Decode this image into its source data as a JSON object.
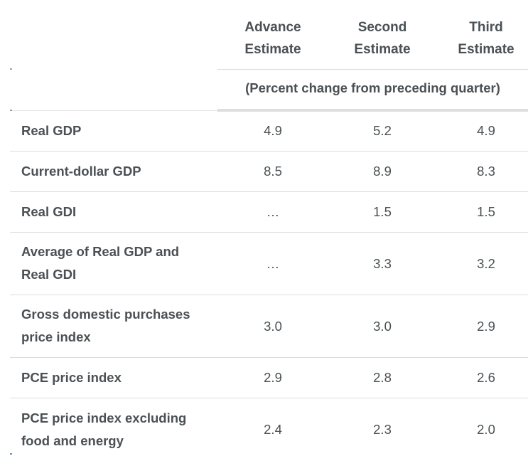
{
  "columns": [
    {
      "line1": "Advance",
      "line2": "Estimate"
    },
    {
      "line1": "Second",
      "line2": "Estimate"
    },
    {
      "line1": "Third",
      "line2": "Estimate"
    }
  ],
  "subheader": "(Percent change from preceding quarter)",
  "rows": [
    {
      "label_lines": [
        "Real GDP"
      ],
      "values": [
        "4.9",
        "5.2",
        "4.9"
      ]
    },
    {
      "label_lines": [
        "Current-dollar GDP"
      ],
      "values": [
        "8.5",
        "8.9",
        "8.3"
      ]
    },
    {
      "label_lines": [
        "Real GDI"
      ],
      "values": [
        "…",
        "1.5",
        "1.5"
      ]
    },
    {
      "label_lines": [
        "Average of Real GDP and",
        "Real GDI"
      ],
      "values": [
        "…",
        "3.3",
        "3.2"
      ]
    },
    {
      "label_lines": [
        "Gross domestic purchases",
        "price index"
      ],
      "values": [
        "3.0",
        "3.0",
        "2.9"
      ]
    },
    {
      "label_lines": [
        "PCE price index"
      ],
      "values": [
        "2.9",
        "2.8",
        "2.6"
      ]
    },
    {
      "label_lines": [
        "PCE price index excluding",
        "food and energy"
      ],
      "values": [
        "2.4",
        "2.3",
        "2.0"
      ]
    }
  ]
}
